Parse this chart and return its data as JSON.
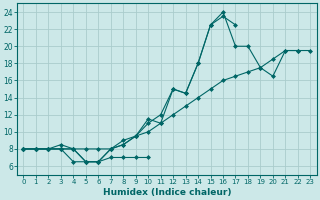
{
  "xlabel": "Humidex (Indice chaleur)",
  "bg_color": "#cce8e8",
  "line_color": "#006666",
  "grid_color": "#aacccc",
  "xlim": [
    -0.5,
    23.5
  ],
  "ylim": [
    5.0,
    25.0
  ],
  "yticks": [
    6,
    8,
    10,
    12,
    14,
    16,
    18,
    20,
    22,
    24
  ],
  "xticks": [
    0,
    1,
    2,
    3,
    4,
    5,
    6,
    7,
    8,
    9,
    10,
    11,
    12,
    13,
    14,
    15,
    16,
    17,
    18,
    19,
    20,
    21,
    22,
    23
  ],
  "line1_x": [
    0,
    1,
    2,
    3,
    4,
    5,
    6,
    7,
    8,
    9,
    10
  ],
  "line1_y": [
    8,
    8,
    8,
    8,
    6.5,
    6.5,
    6.5,
    7,
    7,
    7,
    7
  ],
  "line2_x": [
    0,
    1,
    2,
    3,
    4,
    5,
    6,
    7,
    8,
    9,
    10,
    11,
    12,
    13,
    14,
    15,
    16,
    17
  ],
  "line2_y": [
    8,
    8,
    8,
    8.5,
    8,
    6.5,
    6.5,
    8,
    8.5,
    9.5,
    11,
    12,
    15,
    14.5,
    18,
    22.5,
    23.5,
    22.5
  ],
  "line3_x": [
    0,
    1,
    2,
    3,
    4,
    5,
    6,
    7,
    8,
    9,
    10,
    11,
    12,
    13,
    14,
    15,
    16,
    17,
    18,
    19,
    20,
    21,
    22
  ],
  "line3_y": [
    8,
    8,
    8,
    8,
    8,
    6.5,
    6.5,
    8,
    8.5,
    9.5,
    11.5,
    11,
    15,
    14.5,
    18,
    22.5,
    24,
    20,
    20,
    17.5,
    16.5,
    19.5,
    19.5
  ],
  "line4_x": [
    0,
    1,
    2,
    3,
    4,
    5,
    6,
    7,
    8,
    9,
    10,
    11,
    12,
    13,
    14,
    15,
    16,
    17,
    18,
    19,
    20,
    21,
    22,
    23
  ],
  "line4_y": [
    8,
    8,
    8,
    8,
    8,
    8,
    8,
    8,
    9,
    9.5,
    10,
    11,
    12,
    13,
    14,
    15,
    16,
    16.5,
    17,
    17.5,
    18.5,
    19.5,
    19.5,
    19.5
  ]
}
